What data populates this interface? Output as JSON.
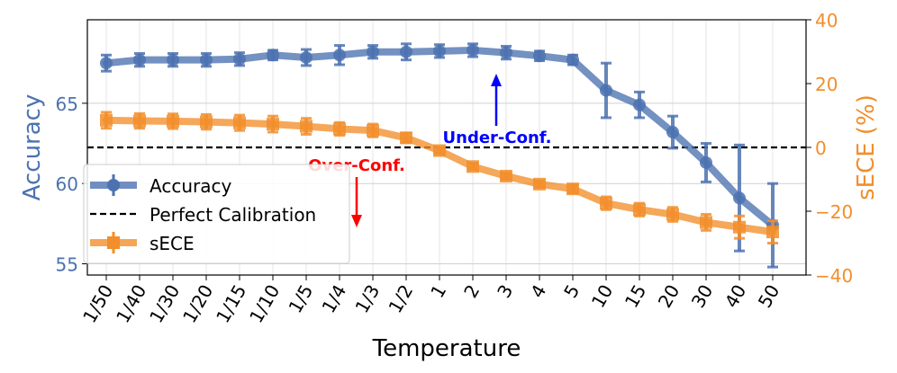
{
  "chart_data": {
    "type": "line",
    "xlabel": "Temperature",
    "categories": [
      "1/50",
      "1/40",
      "1/30",
      "1/20",
      "1/15",
      "1/10",
      "1/5",
      "1/4",
      "1/3",
      "1/2",
      "1",
      "2",
      "3",
      "4",
      "5",
      "10",
      "15",
      "20",
      "30",
      "40",
      "50"
    ],
    "y_left": {
      "label": "Accuracy",
      "range": [
        54.3,
        70.2
      ],
      "ticks": [
        55,
        60,
        65
      ],
      "color": "#4C72B0"
    },
    "y_right": {
      "label": "sECE (%)",
      "range": [
        -40,
        40
      ],
      "ticks": [
        -40,
        -20,
        0,
        20,
        40
      ],
      "tick_labels": [
        "−40",
        "−20",
        "0",
        "20",
        "40"
      ],
      "color": "#F28E2B"
    },
    "series": [
      {
        "name": "Accuracy",
        "axis": "left",
        "color": "#4C72B0",
        "marker": "circle",
        "values": [
          67.5,
          67.7,
          67.7,
          67.7,
          67.75,
          68.0,
          67.85,
          68.0,
          68.2,
          68.2,
          68.25,
          68.3,
          68.15,
          67.95,
          67.7,
          65.8,
          64.9,
          63.2,
          61.3,
          59.1,
          57.4
        ],
        "errors": [
          0.5,
          0.4,
          0.4,
          0.4,
          0.4,
          0.3,
          0.5,
          0.6,
          0.4,
          0.5,
          0.4,
          0.4,
          0.4,
          0.3,
          0.3,
          1.7,
          0.8,
          1.0,
          1.2,
          3.3,
          2.6
        ]
      },
      {
        "name": "sECE",
        "axis": "right",
        "color": "#F28E2B",
        "marker": "square",
        "values": [
          8.5,
          8.3,
          8.2,
          8.0,
          7.7,
          7.3,
          6.6,
          5.8,
          5.3,
          3.0,
          -1.0,
          -6.0,
          -9.0,
          -11.5,
          -13.0,
          -17.5,
          -19.5,
          -21.0,
          -23.5,
          -25.0,
          -26.5
        ],
        "errors": [
          2.5,
          2.3,
          2.3,
          2.3,
          2.4,
          2.5,
          2.5,
          2.0,
          2.0,
          1.5,
          1.0,
          1.0,
          1.0,
          1.0,
          1.2,
          2.0,
          2.0,
          2.2,
          2.5,
          3.5,
          3.5
        ]
      }
    ],
    "reference_line": {
      "name": "Perfect Calibration",
      "axis": "right",
      "value": 0,
      "style": "dashed"
    },
    "legend": {
      "position": "left",
      "entries": [
        "Accuracy",
        "Perfect Calibration",
        "sECE"
      ]
    },
    "annotations": [
      {
        "text": "Under-Conf.",
        "color": "#0000FF",
        "arrow": "up",
        "near_category": "3"
      },
      {
        "text": "Over-Conf.",
        "color": "#FF0000",
        "arrow": "down",
        "near_category": "1/4"
      }
    ],
    "grid": true
  }
}
